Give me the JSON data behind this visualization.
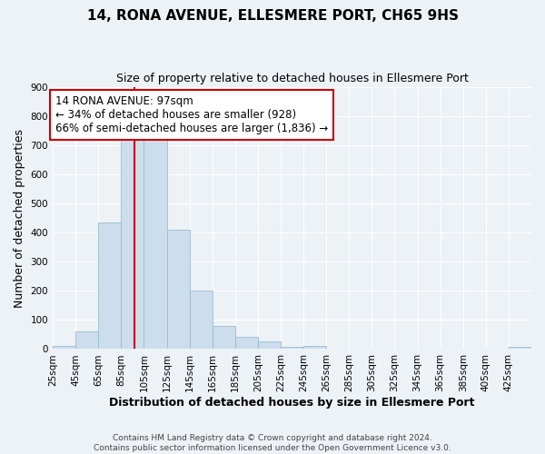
{
  "title": "14, RONA AVENUE, ELLESMERE PORT, CH65 9HS",
  "subtitle": "Size of property relative to detached houses in Ellesmere Port",
  "xlabel": "Distribution of detached houses by size in Ellesmere Port",
  "ylabel": "Number of detached properties",
  "bar_color": "#ccdded",
  "bar_edge_color": "#9bbcce",
  "bins": [
    25,
    45,
    65,
    85,
    105,
    125,
    145,
    165,
    185,
    205,
    225,
    245,
    265,
    285,
    305,
    325,
    345,
    365,
    385,
    405,
    425,
    445
  ],
  "counts": [
    10,
    60,
    435,
    750,
    750,
    410,
    200,
    78,
    42,
    25,
    8,
    10,
    0,
    0,
    0,
    0,
    0,
    0,
    0,
    0,
    8
  ],
  "red_line_x": 97,
  "annotation_title": "14 RONA AVENUE: 97sqm",
  "annotation_line1": "← 34% of detached houses are smaller (928)",
  "annotation_line2": "66% of semi-detached houses are larger (1,836) →",
  "annotation_box_color": "#ffffff",
  "annotation_border_color": "#cc0000",
  "red_line_color": "#cc0000",
  "ylim": [
    0,
    900
  ],
  "yticks": [
    0,
    100,
    200,
    300,
    400,
    500,
    600,
    700,
    800,
    900
  ],
  "xtick_labels": [
    "25sqm",
    "45sqm",
    "65sqm",
    "85sqm",
    "105sqm",
    "125sqm",
    "145sqm",
    "165sqm",
    "185sqm",
    "205sqm",
    "225sqm",
    "245sqm",
    "265sqm",
    "285sqm",
    "305sqm",
    "325sqm",
    "345sqm",
    "365sqm",
    "385sqm",
    "405sqm",
    "425sqm"
  ],
  "footer1": "Contains HM Land Registry data © Crown copyright and database right 2024.",
  "footer2": "Contains public sector information licensed under the Open Government Licence v3.0.",
  "background_color": "#edf2f7",
  "grid_color": "#ffffff",
  "title_fontsize": 11,
  "subtitle_fontsize": 9,
  "axis_label_fontsize": 9,
  "tick_fontsize": 7.5,
  "footer_fontsize": 6.5,
  "annotation_fontsize": 8.5
}
